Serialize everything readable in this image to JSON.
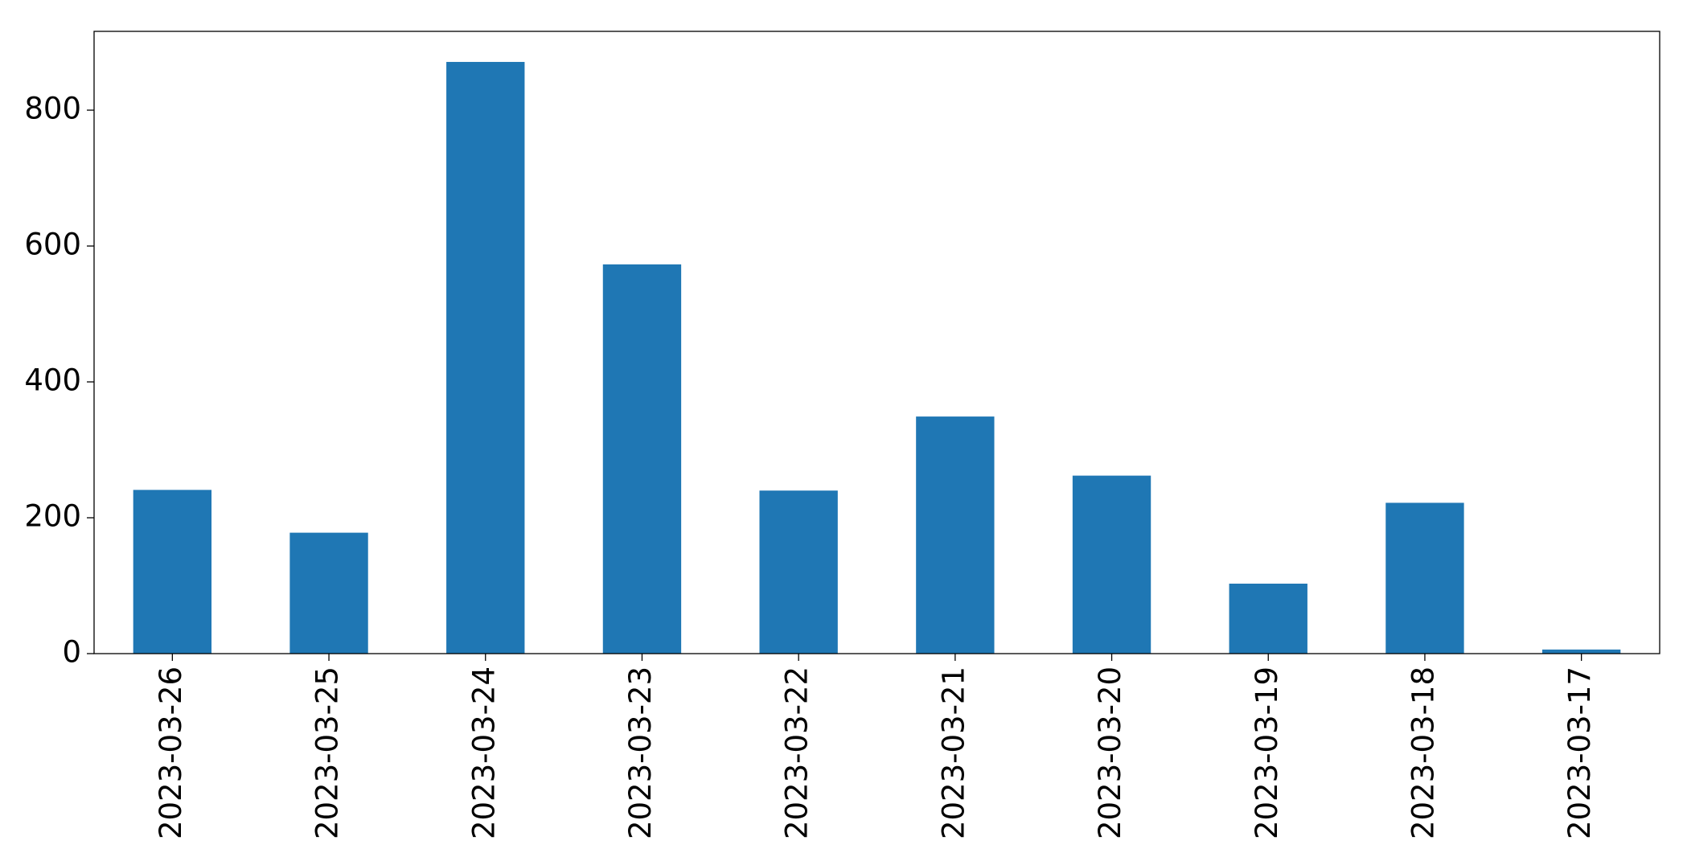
{
  "chart_data": {
    "type": "bar",
    "categories": [
      "2023-03-26",
      "2023-03-25",
      "2023-03-24",
      "2023-03-23",
      "2023-03-22",
      "2023-03-21",
      "2023-03-20",
      "2023-03-19",
      "2023-03-18",
      "2023-03-17"
    ],
    "values": [
      241,
      178,
      871,
      573,
      240,
      349,
      262,
      103,
      222,
      6
    ],
    "color": "#1f77b4",
    "ylim": [
      0,
      916
    ],
    "yticks": [
      0,
      200,
      400,
      600,
      800
    ],
    "grid": false
  }
}
